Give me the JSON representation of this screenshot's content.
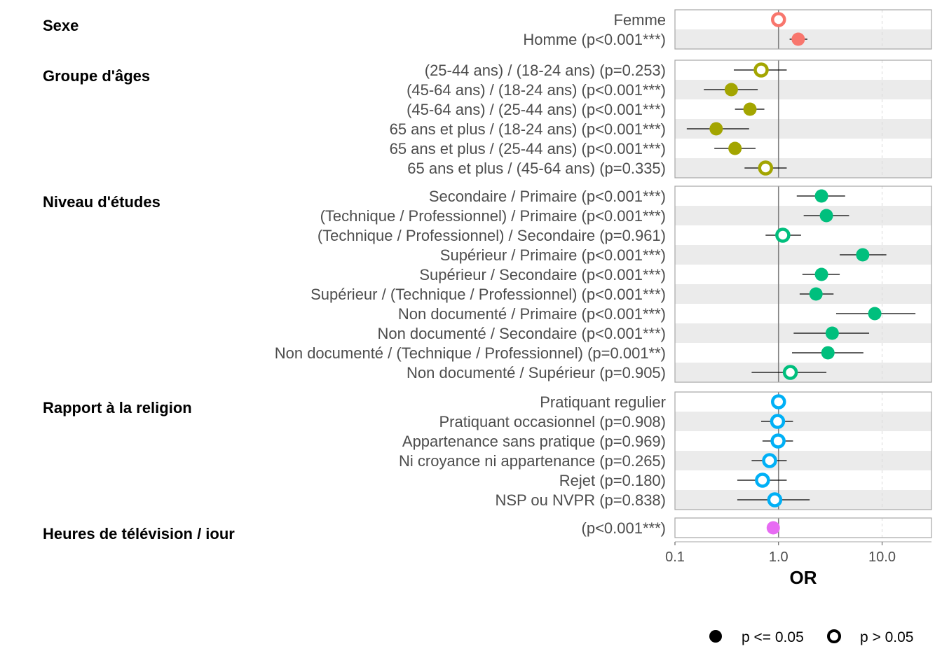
{
  "chart_data": {
    "type": "scatter",
    "subtype": "forest-plot",
    "title": "",
    "xlabel": "OR",
    "ylabel": "",
    "x_scale": "log10",
    "xlim": [
      0.1,
      30
    ],
    "x_ticks": [
      0.1,
      1.0,
      10.0
    ],
    "x_tick_labels": [
      "0.1",
      "1.0",
      "10.0"
    ],
    "reference_line": 1.0,
    "grid": true,
    "groups": [
      {
        "name": "Sexe",
        "color": "#F8766D",
        "rows": [
          {
            "label": "Femme",
            "or": 1.0,
            "low": null,
            "high": null,
            "significant": false
          },
          {
            "label": "Homme (p<0.001***)",
            "or": 1.55,
            "low": 1.28,
            "high": 1.9,
            "significant": true
          }
        ]
      },
      {
        "name": "Groupe d'âges",
        "color": "#A3A500",
        "rows": [
          {
            "label": "(25-44 ans) / (18-24 ans) (p=0.253)",
            "or": 0.68,
            "low": 0.37,
            "high": 1.2,
            "significant": false
          },
          {
            "label": "(45-64 ans) / (18-24 ans) (p<0.001***)",
            "or": 0.35,
            "low": 0.19,
            "high": 0.63,
            "significant": true
          },
          {
            "label": "(45-64 ans) / (25-44 ans) (p<0.001***)",
            "or": 0.53,
            "low": 0.38,
            "high": 0.73,
            "significant": true
          },
          {
            "label": "65 ans et plus / (18-24 ans) (p<0.001***)",
            "or": 0.25,
            "low": 0.13,
            "high": 0.52,
            "significant": true
          },
          {
            "label": "65 ans et plus / (25-44 ans) (p<0.001***)",
            "or": 0.38,
            "low": 0.24,
            "high": 0.6,
            "significant": true
          },
          {
            "label": "65 ans et plus / (45-64 ans) (p=0.335)",
            "or": 0.75,
            "low": 0.47,
            "high": 1.2,
            "significant": false
          }
        ]
      },
      {
        "name": "Niveau d'études",
        "color": "#00BF7D",
        "rows": [
          {
            "label": "Secondaire / Primaire (p<0.001***)",
            "or": 2.6,
            "low": 1.5,
            "high": 4.4,
            "significant": true
          },
          {
            "label": "(Technique / Professionnel) / Primaire (p<0.001***)",
            "or": 2.9,
            "low": 1.75,
            "high": 4.8,
            "significant": true
          },
          {
            "label": "(Technique / Professionnel) / Secondaire (p=0.961)",
            "or": 1.1,
            "low": 0.75,
            "high": 1.65,
            "significant": false
          },
          {
            "label": "Supérieur / Primaire (p<0.001***)",
            "or": 6.5,
            "low": 3.9,
            "high": 11.0,
            "significant": true
          },
          {
            "label": "Supérieur / Secondaire (p<0.001***)",
            "or": 2.6,
            "low": 1.7,
            "high": 3.9,
            "significant": true
          },
          {
            "label": "Supérieur / (Technique / Professionnel) (p<0.001***)",
            "or": 2.3,
            "low": 1.6,
            "high": 3.4,
            "significant": true
          },
          {
            "label": "Non documenté / Primaire (p<0.001***)",
            "or": 8.5,
            "low": 3.6,
            "high": 21.0,
            "significant": true
          },
          {
            "label": "Non documenté / Secondaire (p<0.001***)",
            "or": 3.3,
            "low": 1.4,
            "high": 7.5,
            "significant": true
          },
          {
            "label": "Non documenté / (Technique / Professionnel) (p=0.001**)",
            "or": 3.0,
            "low": 1.35,
            "high": 6.6,
            "significant": true
          },
          {
            "label": "Non documenté / Supérieur (p=0.905)",
            "or": 1.3,
            "low": 0.55,
            "high": 2.9,
            "significant": false
          }
        ]
      },
      {
        "name": "Rapport à la religion",
        "color": "#00B0F6",
        "rows": [
          {
            "label": "Pratiquant regulier",
            "or": 1.0,
            "low": null,
            "high": null,
            "significant": false
          },
          {
            "label": "Pratiquant occasionnel (p=0.908)",
            "or": 0.98,
            "low": 0.68,
            "high": 1.38,
            "significant": false
          },
          {
            "label": "Appartenance sans pratique (p=0.969)",
            "or": 0.99,
            "low": 0.7,
            "high": 1.38,
            "significant": false
          },
          {
            "label": "Ni croyance ni appartenance (p=0.265)",
            "or": 0.82,
            "low": 0.55,
            "high": 1.2,
            "significant": false
          },
          {
            "label": "Rejet (p=0.180)",
            "or": 0.7,
            "low": 0.4,
            "high": 1.2,
            "significant": false
          },
          {
            "label": "NSP ou NVPR (p=0.838)",
            "or": 0.92,
            "low": 0.4,
            "high": 2.0,
            "significant": false
          }
        ]
      },
      {
        "name": "Heures de télévision / jour",
        "color": "#E76BF3",
        "rows": [
          {
            "label": "(p<0.001***)",
            "or": 0.89,
            "low": 0.86,
            "high": 0.92,
            "significant": true
          }
        ]
      }
    ],
    "legend": {
      "position": "bottom-right",
      "items": [
        {
          "label": "p <= 0.05",
          "filled": true
        },
        {
          "label": "p > 0.05",
          "filled": false
        }
      ]
    }
  }
}
